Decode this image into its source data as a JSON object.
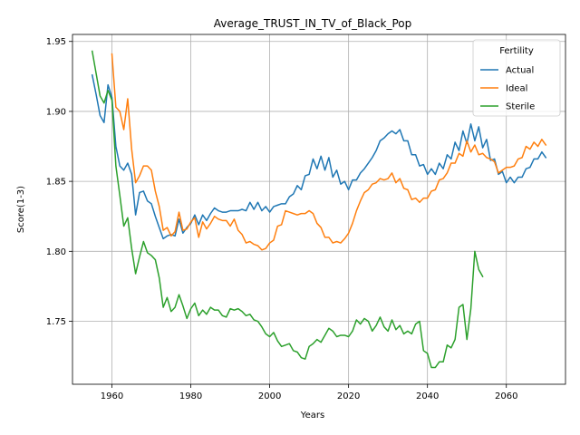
{
  "chart_data": {
    "type": "line",
    "title": "Average_TRUST_IN_TV_of_Black_Pop",
    "xlabel": "Years",
    "ylabel": "Score(1-3)",
    "xlim": [
      1950,
      2075
    ],
    "ylim": [
      1.705,
      1.955
    ],
    "xticks": [
      1960,
      1980,
      2000,
      2020,
      2040,
      2060
    ],
    "yticks": [
      1.75,
      1.8,
      1.85,
      1.9,
      1.95
    ],
    "xtick_labels": [
      "1960",
      "1980",
      "2000",
      "2020",
      "2040",
      "2060"
    ],
    "ytick_labels": [
      "1.75",
      "1.80",
      "1.85",
      "1.90",
      "1.95"
    ],
    "grid": true,
    "legend": {
      "title": "Fertility",
      "placement": "top-right"
    },
    "series": [
      {
        "name": "Actual",
        "color": "#1f77b4",
        "x": [
          1955,
          1956,
          1957,
          1958,
          1959,
          1960,
          1961,
          1962,
          1963,
          1964,
          1965,
          1966,
          1967,
          1968,
          1969,
          1970,
          1971,
          1972,
          1973,
          1974,
          1975,
          1976,
          1977,
          1978,
          1979,
          1980,
          1981,
          1982,
          1983,
          1984,
          1985,
          1986,
          1987,
          1988,
          1989,
          1990,
          1991,
          1992,
          1993,
          1994,
          1995,
          1996,
          1997,
          1998,
          1999,
          2000,
          2001,
          2002,
          2003,
          2004,
          2005,
          2006,
          2007,
          2008,
          2009,
          2010,
          2011,
          2012,
          2013,
          2014,
          2015,
          2016,
          2017,
          2018,
          2019,
          2020,
          2021,
          2022,
          2023,
          2024,
          2025,
          2026,
          2027,
          2028,
          2029,
          2030,
          2031,
          2032,
          2033,
          2034,
          2035,
          2036,
          2037,
          2038,
          2039,
          2040,
          2041,
          2042,
          2043,
          2044,
          2045,
          2046,
          2047,
          2048,
          2049,
          2050,
          2051,
          2052,
          2053,
          2054,
          2055,
          2056,
          2057,
          2058,
          2059,
          2060,
          2061,
          2062,
          2063,
          2064,
          2065,
          2066,
          2067,
          2068,
          2069,
          2070
        ],
        "y": [
          1.926,
          1.912,
          1.897,
          1.892,
          1.919,
          1.91,
          1.875,
          1.861,
          1.858,
          1.863,
          1.855,
          1.826,
          1.842,
          1.843,
          1.836,
          1.834,
          1.825,
          1.817,
          1.809,
          1.811,
          1.812,
          1.811,
          1.823,
          1.813,
          1.817,
          1.82,
          1.826,
          1.819,
          1.826,
          1.822,
          1.827,
          1.831,
          1.829,
          1.828,
          1.828,
          1.829,
          1.829,
          1.829,
          1.83,
          1.829,
          1.835,
          1.83,
          1.835,
          1.829,
          1.832,
          1.828,
          1.832,
          1.833,
          1.834,
          1.834,
          1.839,
          1.841,
          1.847,
          1.844,
          1.854,
          1.855,
          1.866,
          1.859,
          1.868,
          1.858,
          1.867,
          1.853,
          1.858,
          1.848,
          1.85,
          1.844,
          1.851,
          1.851,
          1.856,
          1.859,
          1.863,
          1.867,
          1.872,
          1.879,
          1.881,
          1.884,
          1.886,
          1.884,
          1.887,
          1.879,
          1.879,
          1.869,
          1.869,
          1.861,
          1.862,
          1.855,
          1.859,
          1.855,
          1.863,
          1.859,
          1.869,
          1.866,
          1.878,
          1.872,
          1.886,
          1.877,
          1.891,
          1.879,
          1.889,
          1.874,
          1.88,
          1.865,
          1.866,
          1.855,
          1.857,
          1.849,
          1.853,
          1.849,
          1.853,
          1.853,
          1.859,
          1.86,
          1.866,
          1.866,
          1.871,
          1.867
        ]
      },
      {
        "name": "Ideal",
        "color": "#ff7f0e",
        "x": [
          1960,
          1961,
          1962,
          1963,
          1964,
          1965,
          1966,
          1967,
          1968,
          1969,
          1970,
          1971,
          1972,
          1973,
          1974,
          1975,
          1976,
          1977,
          1978,
          1979,
          1980,
          1981,
          1982,
          1983,
          1984,
          1985,
          1986,
          1987,
          1988,
          1989,
          1990,
          1991,
          1992,
          1993,
          1994,
          1995,
          1996,
          1997,
          1998,
          1999,
          2000,
          2001,
          2002,
          2003,
          2004,
          2005,
          2006,
          2007,
          2008,
          2009,
          2010,
          2011,
          2012,
          2013,
          2014,
          2015,
          2016,
          2017,
          2018,
          2019,
          2020,
          2021,
          2022,
          2023,
          2024,
          2025,
          2026,
          2027,
          2028,
          2029,
          2030,
          2031,
          2032,
          2033,
          2034,
          2035,
          2036,
          2037,
          2038,
          2039,
          2040,
          2041,
          2042,
          2043,
          2044,
          2045,
          2046,
          2047,
          2048,
          2049,
          2050,
          2051,
          2052,
          2053,
          2054,
          2055,
          2056,
          2057,
          2058,
          2059,
          2060,
          2061,
          2062,
          2063,
          2064,
          2065,
          2066,
          2067,
          2068,
          2069,
          2070
        ],
        "y": [
          1.941,
          1.903,
          1.9,
          1.887,
          1.909,
          1.873,
          1.849,
          1.854,
          1.861,
          1.861,
          1.858,
          1.843,
          1.832,
          1.815,
          1.817,
          1.811,
          1.814,
          1.828,
          1.815,
          1.816,
          1.821,
          1.824,
          1.81,
          1.821,
          1.816,
          1.82,
          1.825,
          1.823,
          1.822,
          1.822,
          1.818,
          1.823,
          1.815,
          1.812,
          1.806,
          1.807,
          1.805,
          1.804,
          1.801,
          1.802,
          1.806,
          1.808,
          1.818,
          1.819,
          1.829,
          1.828,
          1.827,
          1.826,
          1.827,
          1.827,
          1.829,
          1.827,
          1.82,
          1.817,
          1.81,
          1.81,
          1.806,
          1.807,
          1.806,
          1.809,
          1.813,
          1.82,
          1.829,
          1.836,
          1.842,
          1.844,
          1.848,
          1.849,
          1.852,
          1.851,
          1.852,
          1.856,
          1.849,
          1.852,
          1.845,
          1.844,
          1.837,
          1.838,
          1.835,
          1.838,
          1.838,
          1.843,
          1.844,
          1.851,
          1.852,
          1.856,
          1.863,
          1.863,
          1.87,
          1.868,
          1.879,
          1.871,
          1.876,
          1.869,
          1.87,
          1.867,
          1.866,
          1.864,
          1.856,
          1.858,
          1.86,
          1.86,
          1.861,
          1.866,
          1.867,
          1.875,
          1.873,
          1.878,
          1.875,
          1.88,
          1.876
        ]
      },
      {
        "name": "Sterile",
        "color": "#2ca02c",
        "x": [
          1955,
          1956,
          1957,
          1958,
          1959,
          1960,
          1961,
          1962,
          1963,
          1964,
          1965,
          1966,
          1967,
          1968,
          1969,
          1970,
          1971,
          1972,
          1973,
          1974,
          1975,
          1976,
          1977,
          1978,
          1979,
          1980,
          1981,
          1982,
          1983,
          1984,
          1985,
          1986,
          1987,
          1988,
          1989,
          1990,
          1991,
          1992,
          1993,
          1994,
          1995,
          1996,
          1997,
          1998,
          1999,
          2000,
          2001,
          2002,
          2003,
          2004,
          2005,
          2006,
          2007,
          2008,
          2009,
          2010,
          2011,
          2012,
          2013,
          2014,
          2015,
          2016,
          2017,
          2018,
          2019,
          2020,
          2021,
          2022,
          2023,
          2024,
          2025,
          2026,
          2027,
          2028,
          2029,
          2030,
          2031,
          2032,
          2033,
          2034,
          2035,
          2036,
          2037,
          2038,
          2039,
          2040,
          2041,
          2042,
          2043,
          2044,
          2045,
          2046,
          2047,
          2048,
          2049,
          2050,
          2051,
          2052,
          2053,
          2054
        ],
        "y": [
          1.943,
          1.927,
          1.911,
          1.906,
          1.915,
          1.908,
          1.861,
          1.84,
          1.818,
          1.824,
          1.802,
          1.784,
          1.796,
          1.807,
          1.799,
          1.797,
          1.794,
          1.781,
          1.76,
          1.767,
          1.757,
          1.76,
          1.769,
          1.761,
          1.752,
          1.759,
          1.763,
          1.754,
          1.758,
          1.755,
          1.76,
          1.758,
          1.758,
          1.754,
          1.753,
          1.759,
          1.758,
          1.759,
          1.757,
          1.754,
          1.755,
          1.751,
          1.75,
          1.746,
          1.741,
          1.739,
          1.742,
          1.736,
          1.732,
          1.733,
          1.734,
          1.729,
          1.728,
          1.724,
          1.723,
          1.732,
          1.734,
          1.737,
          1.735,
          1.74,
          1.745,
          1.743,
          1.739,
          1.74,
          1.74,
          1.739,
          1.743,
          1.751,
          1.748,
          1.752,
          1.75,
          1.743,
          1.747,
          1.753,
          1.746,
          1.743,
          1.751,
          1.744,
          1.747,
          1.741,
          1.743,
          1.741,
          1.748,
          1.75,
          1.729,
          1.727,
          1.717,
          1.717,
          1.721,
          1.721,
          1.733,
          1.731,
          1.737,
          1.76,
          1.762,
          1.737,
          1.759,
          1.8,
          1.787,
          1.782
        ]
      }
    ]
  }
}
